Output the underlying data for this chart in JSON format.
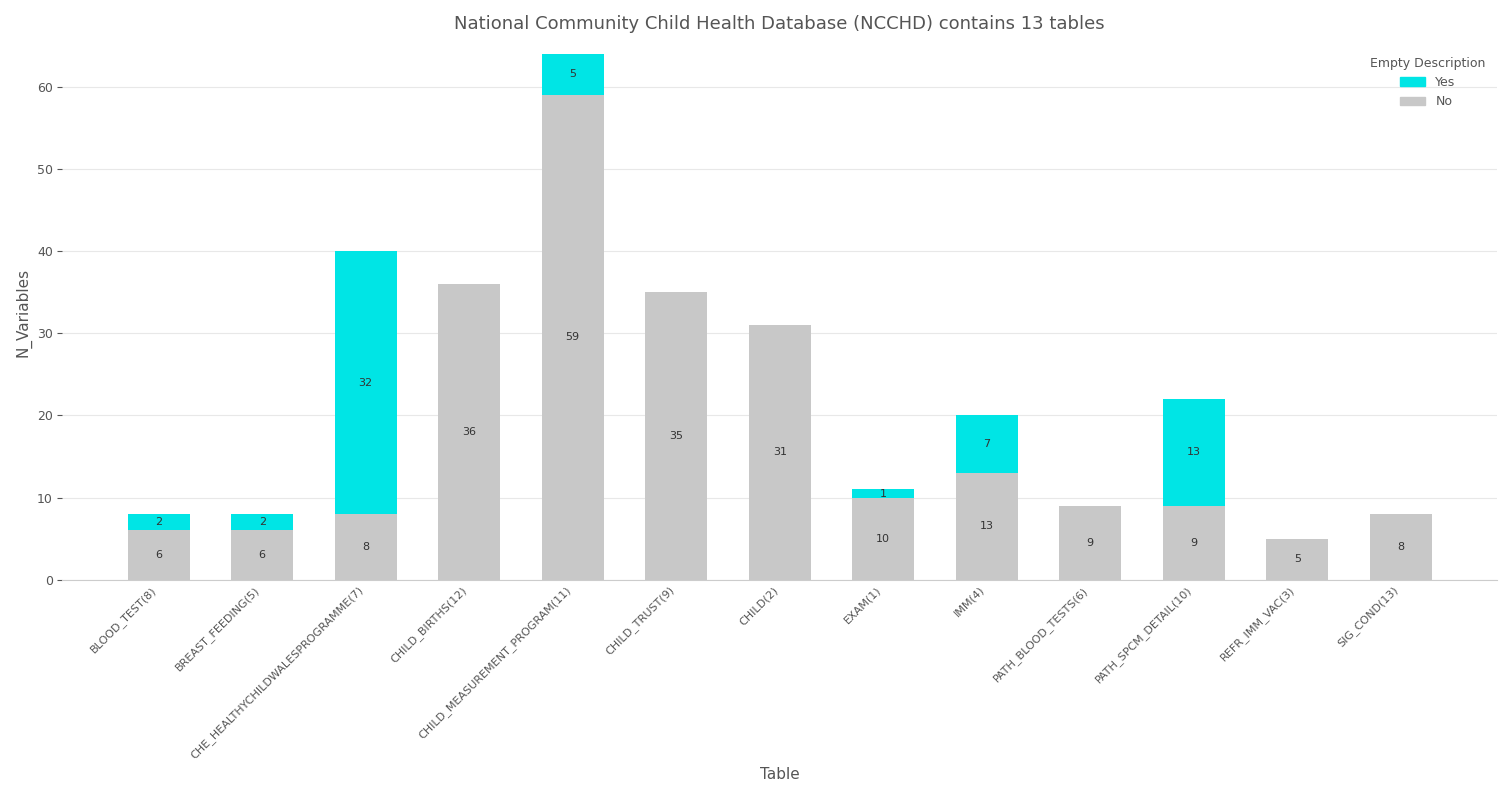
{
  "title": "National Community Child Health Database (NCCHD) contains 13 tables",
  "xlabel": "Table",
  "ylabel": "N_Variables",
  "categories": [
    "BLOOD_TEST(8)",
    "BREAST_FEEDING(5)",
    "CHE_HEALTHYCHILDWALESPROGRAMME(7)",
    "CHILD_BIRTHS(12)",
    "CHILD_MEASUREMENT_PROGRAM(11)",
    "CHILD_TRUST(9)",
    "CHILD(2)",
    "EXAM(1)",
    "IMM(4)",
    "PATH_BLOOD_TESTS(6)",
    "PATH_SPCM_DETAIL(10)",
    "REFR_IMM_VAC(3)",
    "SIG_COND(13)"
  ],
  "no_values": [
    6,
    6,
    8,
    36,
    59,
    35,
    31,
    10,
    13,
    9,
    9,
    5,
    8
  ],
  "yes_values": [
    2,
    2,
    32,
    0,
    5,
    0,
    0,
    1,
    7,
    0,
    13,
    0,
    0
  ],
  "color_yes": "#00E5E5",
  "color_no": "#C8C8C8",
  "background_color": "#ffffff",
  "text_color": "#555555",
  "grid_color": "#e8e8e8",
  "ylim": [
    0,
    65
  ],
  "yticks": [
    0,
    10,
    20,
    30,
    40,
    50,
    60
  ],
  "legend_title": "Empty Description",
  "title_fontsize": 13,
  "axis_label_fontsize": 11,
  "label_fontsize": 8,
  "label_color": "#333333"
}
